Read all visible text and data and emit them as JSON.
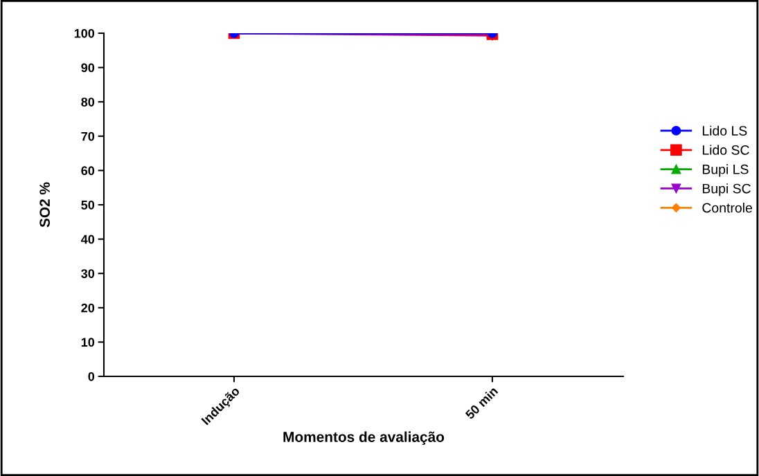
{
  "chart_data": {
    "type": "line",
    "xlabel": "Momentos de avaliação",
    "ylabel": "SO2 %",
    "categories": [
      "Indução",
      "50 min"
    ],
    "ylim": [
      0,
      100
    ],
    "yticks": [
      0,
      10,
      20,
      30,
      40,
      50,
      60,
      70,
      80,
      90,
      100
    ],
    "grid": false,
    "legend": "right",
    "line_style": "solid",
    "series": [
      {
        "name": "Lido LS",
        "color": "#0000ff",
        "marker": "circle",
        "values": [
          100,
          100
        ]
      },
      {
        "name": "Lido SC",
        "color": "#ff0000",
        "marker": "square",
        "values": [
          100,
          99.7
        ]
      },
      {
        "name": "Bupi LS",
        "color": "#00aa00",
        "marker": "triangle",
        "values": [
          null,
          null
        ]
      },
      {
        "name": "Bupi SC",
        "color": "#9900cc",
        "marker": "triangle_down",
        "values": [
          100,
          99.3
        ]
      },
      {
        "name": "Controle",
        "color": "#ff7f00",
        "marker": "diamond",
        "values": [
          null,
          null
        ]
      }
    ]
  }
}
